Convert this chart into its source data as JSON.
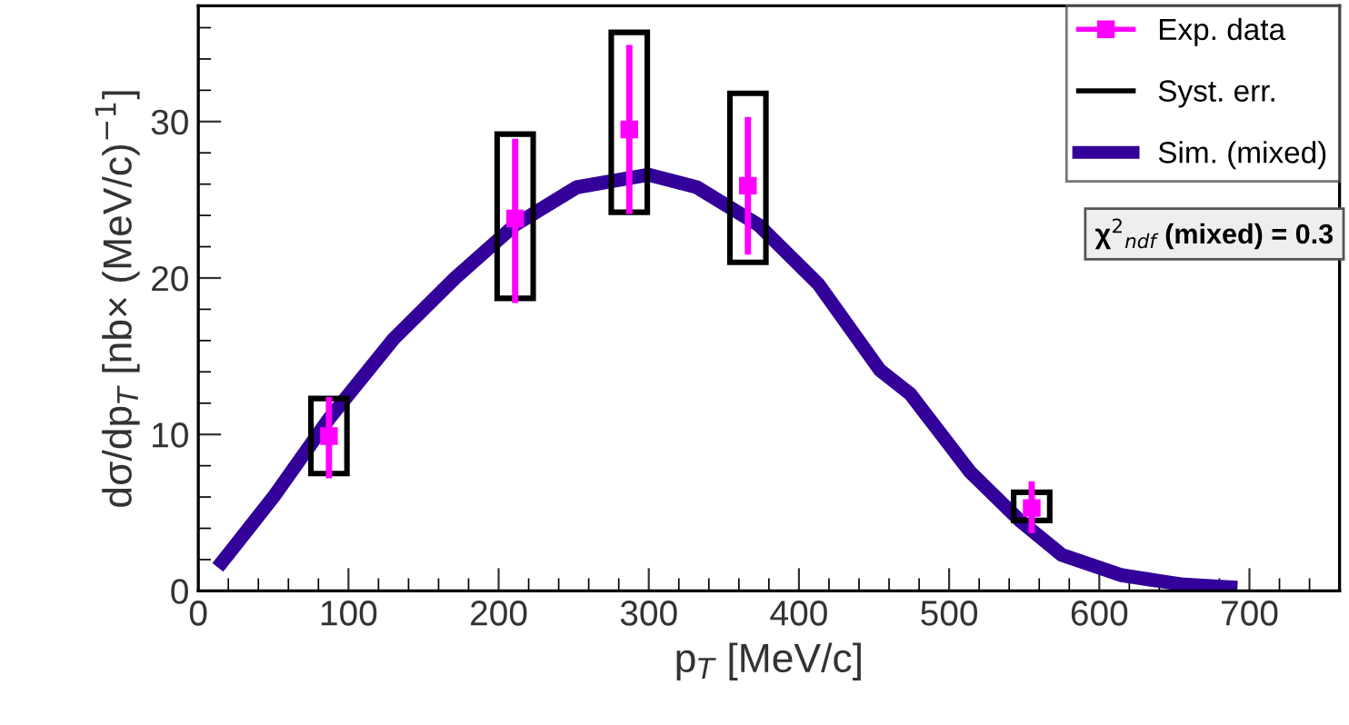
{
  "chart_data": {
    "type": "scatter",
    "xlabel": "p$_{T}$ [MeV/c]",
    "ylabel": "dσ/dp$_{T}$ [nb× (MeV/c)$^{−1}$]",
    "xlim": [
      0,
      760
    ],
    "ylim": [
      0,
      37.4
    ],
    "xticks": [
      0,
      100,
      200,
      300,
      400,
      500,
      600,
      700
    ],
    "yticks": [
      0,
      10,
      20,
      30
    ],
    "legend": "top right",
    "annotations": [
      "χ$^{2}$$_{ndf}$ (mixed) = 0.3"
    ],
    "series": [
      {
        "name": "Exp. data",
        "color": "#ff00ff",
        "marker": "square",
        "x": [
          87,
          211,
          287,
          366,
          555
        ],
        "values": [
          9.9,
          23.8,
          29.5,
          25.9,
          5.3
        ],
        "errors": [
          [
            7.2,
            12.4
          ],
          [
            18.4,
            28.9
          ],
          [
            24.1,
            34.9
          ],
          [
            21.5,
            30.3
          ],
          [
            3.7,
            7.0
          ]
        ]
      },
      {
        "name": "Syst. err.",
        "type": "bar",
        "color": "#000000",
        "x": [
          87,
          211,
          287,
          366,
          555
        ],
        "base": [
          7.5,
          18.7,
          24.2,
          21.0,
          4.5
        ],
        "values": [
          4.8,
          10.5,
          11.5,
          10.8,
          1.8
        ]
      },
      {
        "name": "Sim. (mixed)",
        "type": "line",
        "color": "#330099",
        "line_style": "solid",
        "x": [
          13,
          50,
          87,
          130,
          171,
          211,
          252,
          300,
          332,
          373,
          413,
          454,
          474,
          514,
          547,
          575,
          615,
          656,
          692
        ],
        "values": [
          1.5,
          6.0,
          11.0,
          16.1,
          20.0,
          23.4,
          25.8,
          26.6,
          25.8,
          23.4,
          19.6,
          14.1,
          12.6,
          7.6,
          4.5,
          2.3,
          1.0,
          0.4,
          0.2
        ]
      }
    ]
  }
}
